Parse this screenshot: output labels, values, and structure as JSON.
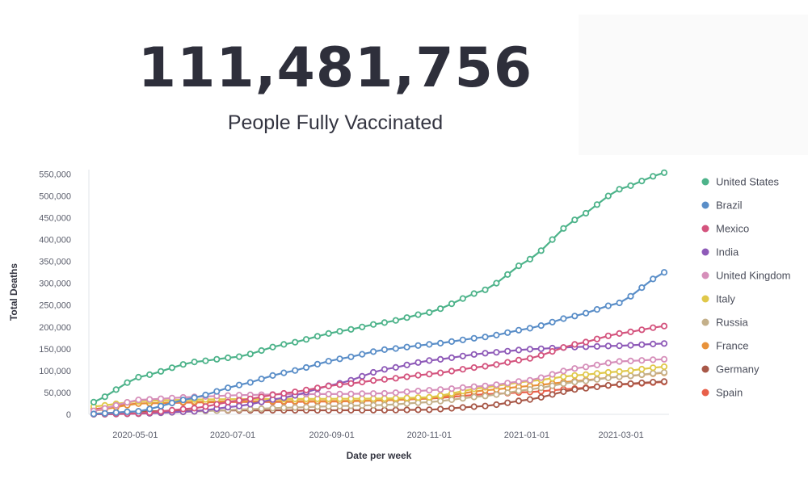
{
  "kpi": {
    "value": "111,481,756",
    "label": "People Fully Vaccinated"
  },
  "chart_data": {
    "type": "line",
    "xlabel": "Date per week",
    "ylabel": "Total Deaths",
    "x_start": "2020-04-05",
    "x_end": "2021-03-28",
    "x_ticks": [
      "2020-05-01",
      "2020-07-01",
      "2020-09-01",
      "2020-11-01",
      "2021-01-01",
      "2021-03-01"
    ],
    "ylim": [
      0,
      560000
    ],
    "y_ticks": [
      0,
      50000,
      100000,
      150000,
      200000,
      250000,
      300000,
      350000,
      400000,
      450000,
      500000,
      550000
    ],
    "y_tick_labels": [
      "0",
      "50,000",
      "100,000",
      "150,000",
      "200,000",
      "250,000",
      "300,000",
      "350,000",
      "400,000",
      "450,000",
      "500,000",
      "550,000"
    ],
    "legend_position": "right",
    "series": [
      {
        "name": "United States",
        "color": "#4db38a",
        "points": [
          [
            "2020-04-05",
            28000
          ],
          [
            "2020-05-03",
            85000
          ],
          [
            "2020-06-07",
            120000
          ],
          [
            "2020-07-05",
            132000
          ],
          [
            "2020-08-02",
            160000
          ],
          [
            "2020-09-06",
            190000
          ],
          [
            "2020-10-04",
            210000
          ],
          [
            "2020-11-01",
            233000
          ],
          [
            "2020-12-06",
            285000
          ],
          [
            "2021-01-03",
            355000
          ],
          [
            "2021-01-31",
            445000
          ],
          [
            "2021-02-28",
            515000
          ],
          [
            "2021-03-28",
            553000
          ]
        ]
      },
      {
        "name": "Brazil",
        "color": "#5a8ec8",
        "points": [
          [
            "2020-04-05",
            1000
          ],
          [
            "2020-05-03",
            7000
          ],
          [
            "2020-06-07",
            38000
          ],
          [
            "2020-07-05",
            67000
          ],
          [
            "2020-08-02",
            95000
          ],
          [
            "2020-09-06",
            127000
          ],
          [
            "2020-10-04",
            148000
          ],
          [
            "2020-11-01",
            160000
          ],
          [
            "2020-12-06",
            177000
          ],
          [
            "2021-01-03",
            197000
          ],
          [
            "2021-01-31",
            225000
          ],
          [
            "2021-02-28",
            255000
          ],
          [
            "2021-03-28",
            325000
          ]
        ]
      },
      {
        "name": "Mexico",
        "color": "#d4547e",
        "points": [
          [
            "2020-04-05",
            100
          ],
          [
            "2020-05-03",
            2000
          ],
          [
            "2020-06-07",
            14000
          ],
          [
            "2020-07-05",
            32000
          ],
          [
            "2020-08-02",
            48000
          ],
          [
            "2020-09-06",
            68000
          ],
          [
            "2020-10-04",
            80000
          ],
          [
            "2020-11-01",
            92000
          ],
          [
            "2020-12-06",
            110000
          ],
          [
            "2021-01-03",
            128000
          ],
          [
            "2021-01-31",
            160000
          ],
          [
            "2021-02-28",
            185000
          ],
          [
            "2021-03-28",
            202000
          ]
        ]
      },
      {
        "name": "India",
        "color": "#8e5ab8",
        "points": [
          [
            "2020-04-05",
            100
          ],
          [
            "2020-05-03",
            1500
          ],
          [
            "2020-06-07",
            7000
          ],
          [
            "2020-07-05",
            19000
          ],
          [
            "2020-08-02",
            38000
          ],
          [
            "2020-09-06",
            71000
          ],
          [
            "2020-10-04",
            103000
          ],
          [
            "2020-11-01",
            123000
          ],
          [
            "2020-12-06",
            140000
          ],
          [
            "2021-01-03",
            149000
          ],
          [
            "2021-01-31",
            154000
          ],
          [
            "2021-02-28",
            157000
          ],
          [
            "2021-03-28",
            162000
          ]
        ]
      },
      {
        "name": "United Kingdom",
        "color": "#d68fba",
        "points": [
          [
            "2020-04-05",
            8000
          ],
          [
            "2020-05-03",
            33000
          ],
          [
            "2020-06-07",
            40000
          ],
          [
            "2020-07-05",
            44000
          ],
          [
            "2020-08-02",
            46000
          ],
          [
            "2020-09-06",
            46500
          ],
          [
            "2020-10-04",
            48000
          ],
          [
            "2020-11-01",
            55000
          ],
          [
            "2020-12-06",
            65000
          ],
          [
            "2021-01-03",
            78000
          ],
          [
            "2021-01-31",
            105000
          ],
          [
            "2021-02-28",
            121000
          ],
          [
            "2021-03-28",
            126000
          ]
        ]
      },
      {
        "name": "Italy",
        "color": "#e0c84a",
        "points": [
          [
            "2020-04-05",
            18000
          ],
          [
            "2020-05-03",
            30000
          ],
          [
            "2020-06-07",
            34000
          ],
          [
            "2020-07-05",
            35000
          ],
          [
            "2020-08-02",
            35200
          ],
          [
            "2020-09-06",
            35600
          ],
          [
            "2020-10-04",
            36200
          ],
          [
            "2020-11-01",
            39000
          ],
          [
            "2020-12-06",
            62000
          ],
          [
            "2021-01-03",
            76000
          ],
          [
            "2021-01-31",
            89000
          ],
          [
            "2021-02-28",
            98000
          ],
          [
            "2021-03-28",
            109000
          ]
        ]
      },
      {
        "name": "Russia",
        "color": "#c4b08a",
        "points": [
          [
            "2020-04-05",
            100
          ],
          [
            "2020-05-03",
            1300
          ],
          [
            "2020-06-07",
            6500
          ],
          [
            "2020-07-05",
            11000
          ],
          [
            "2020-08-02",
            15000
          ],
          [
            "2020-09-06",
            19000
          ],
          [
            "2020-10-04",
            21500
          ],
          [
            "2020-11-01",
            28000
          ],
          [
            "2020-12-06",
            42000
          ],
          [
            "2021-01-03",
            57000
          ],
          [
            "2021-01-31",
            74000
          ],
          [
            "2021-02-28",
            86000
          ],
          [
            "2021-03-28",
            96000
          ]
        ]
      },
      {
        "name": "France",
        "color": "#e8923a",
        "points": [
          [
            "2020-04-05",
            8000
          ],
          [
            "2020-05-03",
            24500
          ],
          [
            "2020-06-07",
            29000
          ],
          [
            "2020-07-05",
            29900
          ],
          [
            "2020-08-02",
            30300
          ],
          [
            "2020-09-06",
            30700
          ],
          [
            "2020-10-04",
            32000
          ],
          [
            "2020-11-01",
            37000
          ],
          [
            "2020-12-06",
            55000
          ],
          [
            "2021-01-03",
            65000
          ],
          [
            "2021-01-31",
            76000
          ],
          [
            "2021-02-28",
            86000
          ],
          [
            "2021-03-28",
            95000
          ]
        ]
      },
      {
        "name": "Germany",
        "color": "#a85848",
        "points": [
          [
            "2020-04-05",
            1500
          ],
          [
            "2020-05-03",
            6700
          ],
          [
            "2020-06-07",
            8700
          ],
          [
            "2020-07-05",
            9000
          ],
          [
            "2020-08-02",
            9200
          ],
          [
            "2020-09-06",
            9300
          ],
          [
            "2020-10-04",
            9600
          ],
          [
            "2020-11-01",
            10600
          ],
          [
            "2020-12-06",
            19000
          ],
          [
            "2021-01-03",
            34000
          ],
          [
            "2021-01-31",
            57000
          ],
          [
            "2021-02-28",
            69000
          ],
          [
            "2021-03-28",
            75000
          ]
        ]
      },
      {
        "name": "Spain",
        "color": "#e8604a",
        "points": [
          [
            "2020-04-05",
            12000
          ],
          [
            "2020-05-03",
            25000
          ],
          [
            "2020-06-07",
            27100
          ],
          [
            "2020-07-05",
            28300
          ],
          [
            "2020-08-02",
            28500
          ],
          [
            "2020-09-06",
            29500
          ],
          [
            "2020-10-04",
            32000
          ],
          [
            "2020-11-01",
            36000
          ],
          [
            "2020-12-06",
            46000
          ],
          [
            "2021-01-03",
            51000
          ],
          [
            "2021-01-31",
            59000
          ],
          [
            "2021-02-28",
            68000
          ],
          [
            "2021-03-28",
            74000
          ]
        ]
      }
    ]
  }
}
